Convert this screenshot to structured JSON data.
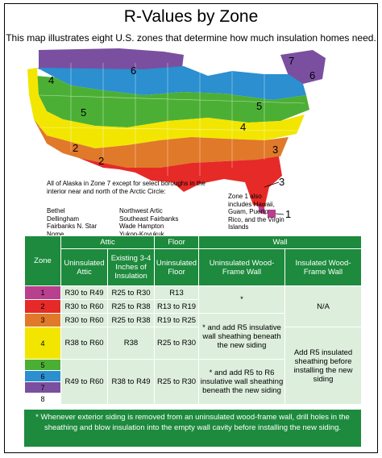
{
  "title": "R-Values by Zone",
  "subtitle": "This map illustrates eight U.S. zones that determine how much insulation homes need.",
  "map": {
    "zone_labels": [
      "1",
      "2",
      "3",
      "4",
      "5",
      "6",
      "7",
      "2",
      "3",
      "4",
      "5",
      "6",
      "7"
    ],
    "alaska_note": "All of Alaska in Zone 7 except for select boroughs in the interior near and north of the Arctic Circle:",
    "alaska_boroughs_left": [
      "Bethel",
      "Dellingham",
      "Fairbanks N. Star",
      "Nome"
    ],
    "alaska_boroughs_right": [
      "Northwest Artic",
      "Southeast Fairbanks",
      "Wade Hampton",
      "Yukon-Koyukuk"
    ],
    "zone1_note": "Zone 1 also includes Hawaii, Guam, Puerto Rico, and the Virgin Islands",
    "zone_colors": {
      "1": "#b8408e",
      "2": "#e62a27",
      "3": "#e0792a",
      "4": "#f2e600",
      "5": "#4caf35",
      "6": "#2b8fd0",
      "7": "#7a4fa0",
      "8": "#ffffff"
    }
  },
  "table": {
    "zone_header": "Zone",
    "group_headers": [
      "Attic",
      "Floor",
      "Wall"
    ],
    "sub_headers": [
      "Uninsulated Attic",
      "Existing 3-4 Inches of Insulation",
      "Uninsulated Floor",
      "Uninsulated Wood-Frame Wall",
      "Insulated Wood-Frame Wall"
    ],
    "zones": [
      "1",
      "2",
      "3",
      "4",
      "5",
      "6",
      "7",
      "8"
    ],
    "rows": [
      {
        "attic_uninsulated": "R30 to R49",
        "attic_existing": "R25 to R30",
        "floor": "R13"
      },
      {
        "attic_uninsulated": "R30 to R60",
        "attic_existing": "R25 to R38",
        "floor": "R13 to R19"
      },
      {
        "attic_uninsulated": "R30 to R60",
        "attic_existing": "R25 to R38",
        "floor": "R19 to R25"
      },
      {
        "attic_uninsulated": "R38 to R60",
        "attic_existing": "R38",
        "floor": "R25 to R30"
      },
      {
        "attic_uninsulated": "R49 to R60",
        "attic_existing": "R38 to R49",
        "floor": "R25 to R30"
      }
    ],
    "wall_uninsulated": [
      "*",
      "* and add R5 insulative wall sheathing beneath the new siding",
      "* and add R5 to R6 insulative wall sheathing beneath the new siding"
    ],
    "wall_insulated": [
      "N/A",
      "Add R5 insulated sheathing before installing the new siding"
    ]
  },
  "footnote": "* Whenever exterior siding is removed from an uninsulated wood-frame wall, drill holes in the sheathing and blow insulation into the empty wall cavity before installing the new siding."
}
